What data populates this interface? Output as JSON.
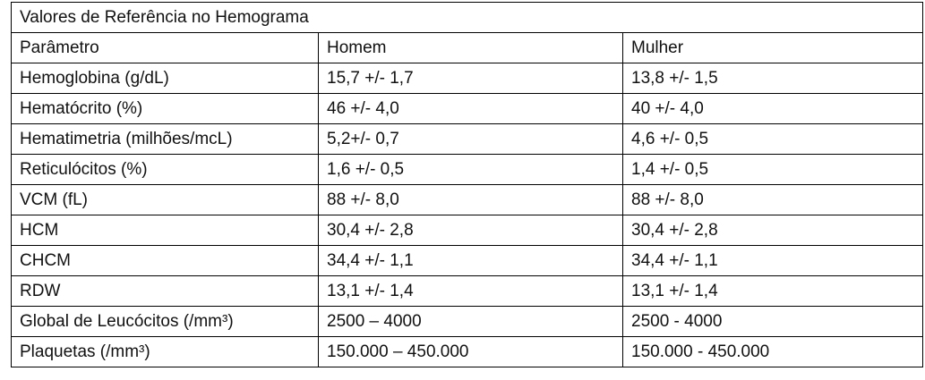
{
  "table": {
    "title": "Valores de Referência no Hemograma",
    "header": [
      "Parâmetro",
      "Homem",
      "Mulher"
    ],
    "rows": [
      [
        "Hemoglobina (g/dL)",
        "15,7 +/- 1,7",
        "13,8 +/- 1,5"
      ],
      [
        "Hematócrito (%)",
        "46 +/- 4,0",
        "40 +/- 4,0"
      ],
      [
        "Hematimetria (milhões/mcL)",
        "5,2+/- 0,7",
        "4,6 +/- 0,5"
      ],
      [
        "Reticulócitos (%)",
        "1,6 +/- 0,5",
        "1,4 +/- 0,5"
      ],
      [
        "VCM (fL)",
        "88 +/- 8,0",
        "88 +/- 8,0"
      ],
      [
        "HCM",
        "30,4 +/- 2,8",
        "30,4 +/- 2,8"
      ],
      [
        "CHCM",
        "34,4 +/- 1,1",
        "34,4 +/- 1,1"
      ],
      [
        "RDW",
        "13,1 +/- 1,4",
        "13,1 +/- 1,4"
      ],
      [
        "Global de Leucócitos (/mm³)",
        "2500 – 4000",
        "2500 - 4000"
      ],
      [
        "Plaquetas (/mm³)",
        "150.000 – 450.000",
        "150.000 - 450.000"
      ]
    ]
  }
}
